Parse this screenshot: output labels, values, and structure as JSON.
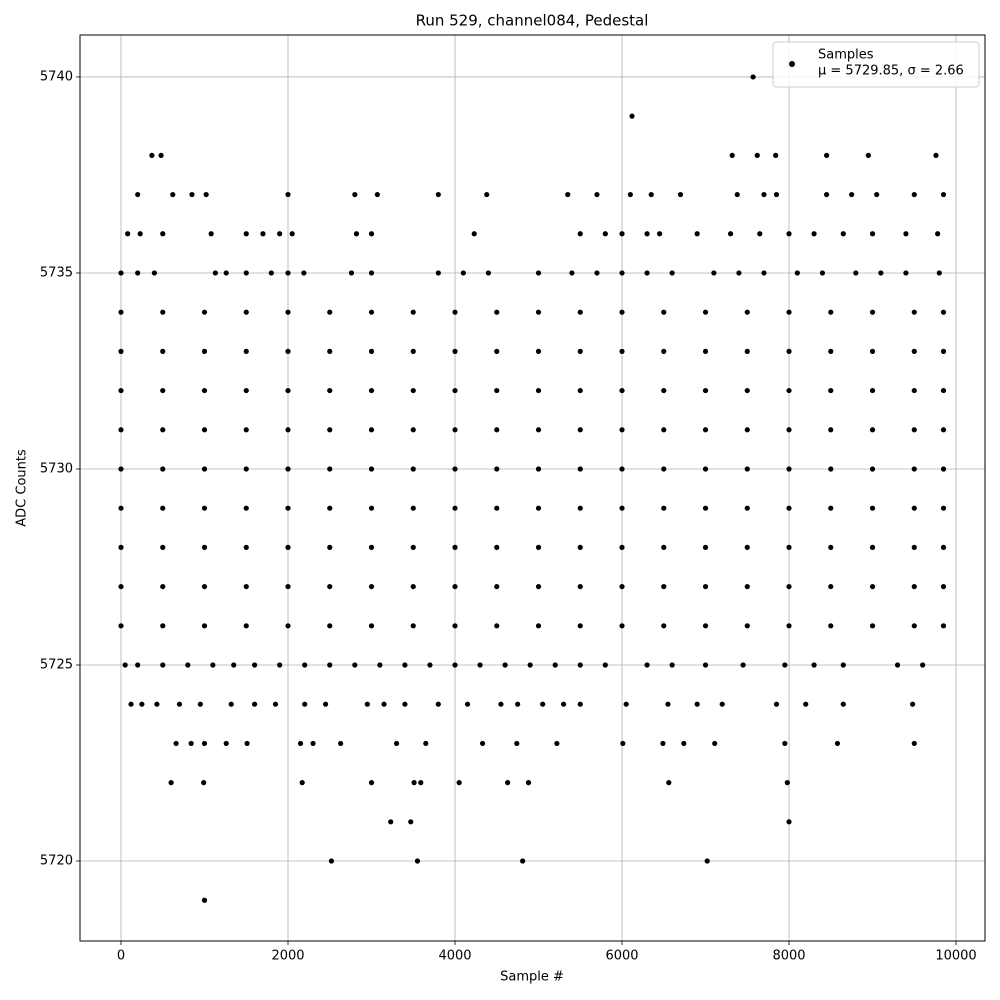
{
  "chart_data": {
    "type": "scatter",
    "title": "Run 529, channel084, Pedestal",
    "x_label": "Sample #",
    "y_label": "ADC Counts",
    "xlim": [
      -491,
      10347
    ],
    "ylim": [
      5717.96,
      5741.07
    ],
    "xticks": [
      0,
      2000,
      4000,
      6000,
      8000,
      10000
    ],
    "yticks": [
      5720,
      5725,
      5730,
      5735,
      5740
    ],
    "grid": true,
    "legend_position": "upper right",
    "legend_note": "μ = 5729.85, σ = 2.66",
    "series": [
      {
        "name": "Samples",
        "color": "#000000",
        "x": [
          1000,
          2520,
          3550,
          4810,
          7020,
          3230,
          3470,
          8000,
          600,
          990,
          2170,
          3000,
          3510,
          3590,
          4050,
          4630,
          4880,
          6560,
          7980,
          7570,
          6120,
          370,
          480,
          7320,
          7620,
          7840,
          8450,
          8950,
          9760,
          660,
          840,
          1000,
          1260,
          1510,
          2150,
          2300,
          2630,
          3300,
          3650,
          4330,
          4740,
          5220,
          6010,
          6490,
          6740,
          7110,
          7950,
          8580,
          9500,
          120,
          250,
          430,
          700,
          950,
          1320,
          1600,
          1850,
          2200,
          2450,
          2950,
          3150,
          3400,
          3800,
          4150,
          4550,
          4750,
          5050,
          5300,
          5500,
          6050,
          6550,
          6900,
          7200,
          7850,
          8200,
          8650,
          9480,
          200,
          620,
          850,
          1020,
          2000,
          2800,
          3070,
          3800,
          4380,
          5350,
          5700,
          6100,
          6350,
          6700,
          7380,
          7700,
          7850,
          8450,
          8750,
          9050,
          9500,
          9850,
          80,
          230,
          500,
          1080,
          1500,
          1700,
          1900,
          2050,
          2820,
          3000,
          4230,
          5500,
          5800,
          6000,
          6300,
          6450,
          6900,
          7300,
          7650,
          8000,
          8300,
          8650,
          9000,
          9400,
          9780,
          0,
          200,
          400,
          1130,
          1260,
          1500,
          1800,
          2000,
          2190,
          2760,
          3000,
          3800,
          4100,
          4400,
          5000,
          5400,
          5700,
          6000,
          6300,
          6600,
          7100,
          7400,
          7700,
          8100,
          8400,
          8800,
          9100,
          9400,
          9800,
          50,
          200,
          500,
          800,
          1100,
          1350,
          1600,
          1900,
          2200,
          2500,
          2800,
          3100,
          3400,
          3700,
          4000,
          4300,
          4600,
          4900,
          5200,
          5500,
          5800,
          6300,
          6600,
          7000,
          7450,
          7950,
          8300,
          8650,
          9300,
          9600,
          0,
          500,
          1000,
          1500,
          2000,
          2500,
          3000,
          3500,
          4000,
          4500,
          5000,
          5500,
          6000,
          6500,
          7000,
          7500,
          8000,
          8500,
          9000,
          9500,
          9850,
          0,
          500,
          1000,
          1500,
          2000,
          2500,
          3000,
          3500,
          4000,
          4500,
          5000,
          5500,
          6000,
          6500,
          7000,
          7500,
          8000,
          8500,
          9000,
          9500,
          9850,
          0,
          500,
          1000,
          1500,
          2000,
          2500,
          3000,
          3500,
          4000,
          4500,
          5000,
          5500,
          6000,
          6500,
          7000,
          7500,
          8000,
          8500,
          9000,
          9500,
          9850,
          0,
          500,
          1000,
          1500,
          2000,
          2500,
          3000,
          3500,
          4000,
          4500,
          5000,
          5500,
          6000,
          6500,
          7000,
          7500,
          8000,
          8500,
          9000,
          9500,
          9850,
          0,
          500,
          1000,
          1500,
          2000,
          2500,
          3000,
          3500,
          4000,
          4500,
          5000,
          5500,
          6000,
          6500,
          7000,
          7500,
          8000,
          8500,
          9000,
          9500,
          9850,
          0,
          500,
          1000,
          1500,
          2000,
          2500,
          3000,
          3500,
          4000,
          4500,
          5000,
          5500,
          6000,
          6500,
          7000,
          7500,
          8000,
          8500,
          9000,
          9500,
          9850,
          0,
          500,
          1000,
          1500,
          2000,
          2500,
          3000,
          3500,
          4000,
          4500,
          5000,
          5500,
          6000,
          6500,
          7000,
          7500,
          8000,
          8500,
          9000,
          9500,
          9850,
          0,
          500,
          1000,
          1500,
          2000,
          2500,
          3000,
          3500,
          4000,
          4500,
          5000,
          5500,
          6000,
          6500,
          7000,
          7500,
          8000,
          8500,
          9000,
          9500,
          9850,
          0,
          500,
          1000,
          1500,
          2000,
          2500,
          3000,
          3500,
          4000,
          4500,
          5000,
          5500,
          6000,
          6500,
          7000,
          7500,
          8000,
          8500,
          9000,
          9500,
          9850
        ],
        "values": [
          5719,
          5720,
          5720,
          5720,
          5720,
          5721,
          5721,
          5721,
          5722,
          5722,
          5722,
          5722,
          5722,
          5722,
          5722,
          5722,
          5722,
          5722,
          5722,
          5740,
          5739,
          5738,
          5738,
          5738,
          5738,
          5738,
          5738,
          5738,
          5738,
          5723,
          5723,
          5723,
          5723,
          5723,
          5723,
          5723,
          5723,
          5723,
          5723,
          5723,
          5723,
          5723,
          5723,
          5723,
          5723,
          5723,
          5723,
          5723,
          5723,
          5724,
          5724,
          5724,
          5724,
          5724,
          5724,
          5724,
          5724,
          5724,
          5724,
          5724,
          5724,
          5724,
          5724,
          5724,
          5724,
          5724,
          5724,
          5724,
          5724,
          5724,
          5724,
          5724,
          5724,
          5724,
          5724,
          5724,
          5724,
          5737,
          5737,
          5737,
          5737,
          5737,
          5737,
          5737,
          5737,
          5737,
          5737,
          5737,
          5737,
          5737,
          5737,
          5737,
          5737,
          5737,
          5737,
          5737,
          5737,
          5737,
          5737,
          5736,
          5736,
          5736,
          5736,
          5736,
          5736,
          5736,
          5736,
          5736,
          5736,
          5736,
          5736,
          5736,
          5736,
          5736,
          5736,
          5736,
          5736,
          5736,
          5736,
          5736,
          5736,
          5736,
          5736,
          5736,
          5735,
          5735,
          5735,
          5735,
          5735,
          5735,
          5735,
          5735,
          5735,
          5735,
          5735,
          5735,
          5735,
          5735,
          5735,
          5735,
          5735,
          5735,
          5735,
          5735,
          5735,
          5735,
          5735,
          5735,
          5735,
          5735,
          5735,
          5735,
          5735,
          5725,
          5725,
          5725,
          5725,
          5725,
          5725,
          5725,
          5725,
          5725,
          5725,
          5725,
          5725,
          5725,
          5725,
          5725,
          5725,
          5725,
          5725,
          5725,
          5725,
          5725,
          5725,
          5725,
          5725,
          5725,
          5725,
          5725,
          5725,
          5725,
          5725,
          5726,
          5726,
          5726,
          5726,
          5726,
          5726,
          5726,
          5726,
          5726,
          5726,
          5726,
          5726,
          5726,
          5726,
          5726,
          5726,
          5726,
          5726,
          5726,
          5726,
          5726,
          5727,
          5727,
          5727,
          5727,
          5727,
          5727,
          5727,
          5727,
          5727,
          5727,
          5727,
          5727,
          5727,
          5727,
          5727,
          5727,
          5727,
          5727,
          5727,
          5727,
          5727,
          5728,
          5728,
          5728,
          5728,
          5728,
          5728,
          5728,
          5728,
          5728,
          5728,
          5728,
          5728,
          5728,
          5728,
          5728,
          5728,
          5728,
          5728,
          5728,
          5728,
          5728,
          5729,
          5729,
          5729,
          5729,
          5729,
          5729,
          5729,
          5729,
          5729,
          5729,
          5729,
          5729,
          5729,
          5729,
          5729,
          5729,
          5729,
          5729,
          5729,
          5729,
          5729,
          5730,
          5730,
          5730,
          5730,
          5730,
          5730,
          5730,
          5730,
          5730,
          5730,
          5730,
          5730,
          5730,
          5730,
          5730,
          5730,
          5730,
          5730,
          5730,
          5730,
          5730,
          5731,
          5731,
          5731,
          5731,
          5731,
          5731,
          5731,
          5731,
          5731,
          5731,
          5731,
          5731,
          5731,
          5731,
          5731,
          5731,
          5731,
          5731,
          5731,
          5731,
          5731,
          5732,
          5732,
          5732,
          5732,
          5732,
          5732,
          5732,
          5732,
          5732,
          5732,
          5732,
          5732,
          5732,
          5732,
          5732,
          5732,
          5732,
          5732,
          5732,
          5732,
          5732,
          5733,
          5733,
          5733,
          5733,
          5733,
          5733,
          5733,
          5733,
          5733,
          5733,
          5733,
          5733,
          5733,
          5733,
          5733,
          5733,
          5733,
          5733,
          5733,
          5733,
          5733,
          5734,
          5734,
          5734,
          5734,
          5734,
          5734,
          5734,
          5734,
          5734,
          5734,
          5734,
          5734,
          5734,
          5734,
          5734,
          5734,
          5734,
          5734,
          5734,
          5734,
          5734
        ]
      }
    ]
  }
}
